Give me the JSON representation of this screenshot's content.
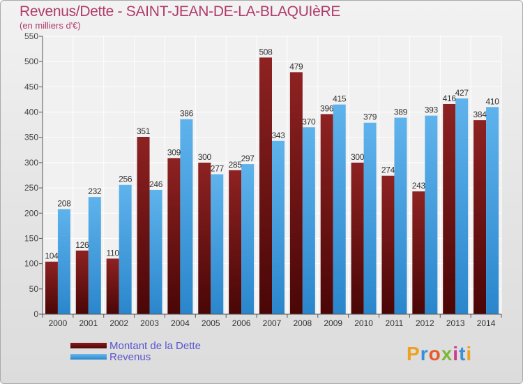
{
  "title": "Revenus/Dette - SAINT-JEAN-DE-LA-BLAQUIèRE",
  "subtitle": "(en milliers d'€)",
  "legend": {
    "debt_label": "Montant de la Dette",
    "revenue_label": "Revenus"
  },
  "logo": {
    "text": "Proxiti"
  },
  "colors": {
    "debt": "#7a1616",
    "revenue": "#4aa6e4",
    "title": "#b03a6a",
    "legend_text": "#5a56d0"
  },
  "chart_data": {
    "type": "bar",
    "title": "Revenus/Dette - SAINT-JEAN-DE-LA-BLAQUIèRE",
    "subtitle": "(en milliers d'€)",
    "categories": [
      "2000",
      "2001",
      "2002",
      "2003",
      "2004",
      "2005",
      "2006",
      "2007",
      "2008",
      "2009",
      "2010",
      "2011",
      "2012",
      "2013",
      "2014"
    ],
    "series": [
      {
        "name": "Montant de la Dette",
        "values": [
          104,
          126,
          110,
          351,
          309,
          300,
          285,
          508,
          479,
          396,
          300,
          274,
          243,
          416,
          384
        ]
      },
      {
        "name": "Revenus",
        "values": [
          208,
          232,
          256,
          246,
          386,
          277,
          297,
          343,
          370,
          415,
          379,
          389,
          393,
          427,
          410
        ]
      }
    ],
    "ylim": [
      0,
      550
    ],
    "yticks": [
      0,
      50,
      100,
      150,
      200,
      250,
      300,
      350,
      400,
      450,
      500,
      550
    ],
    "grid": true,
    "legend": "bottom-left"
  }
}
